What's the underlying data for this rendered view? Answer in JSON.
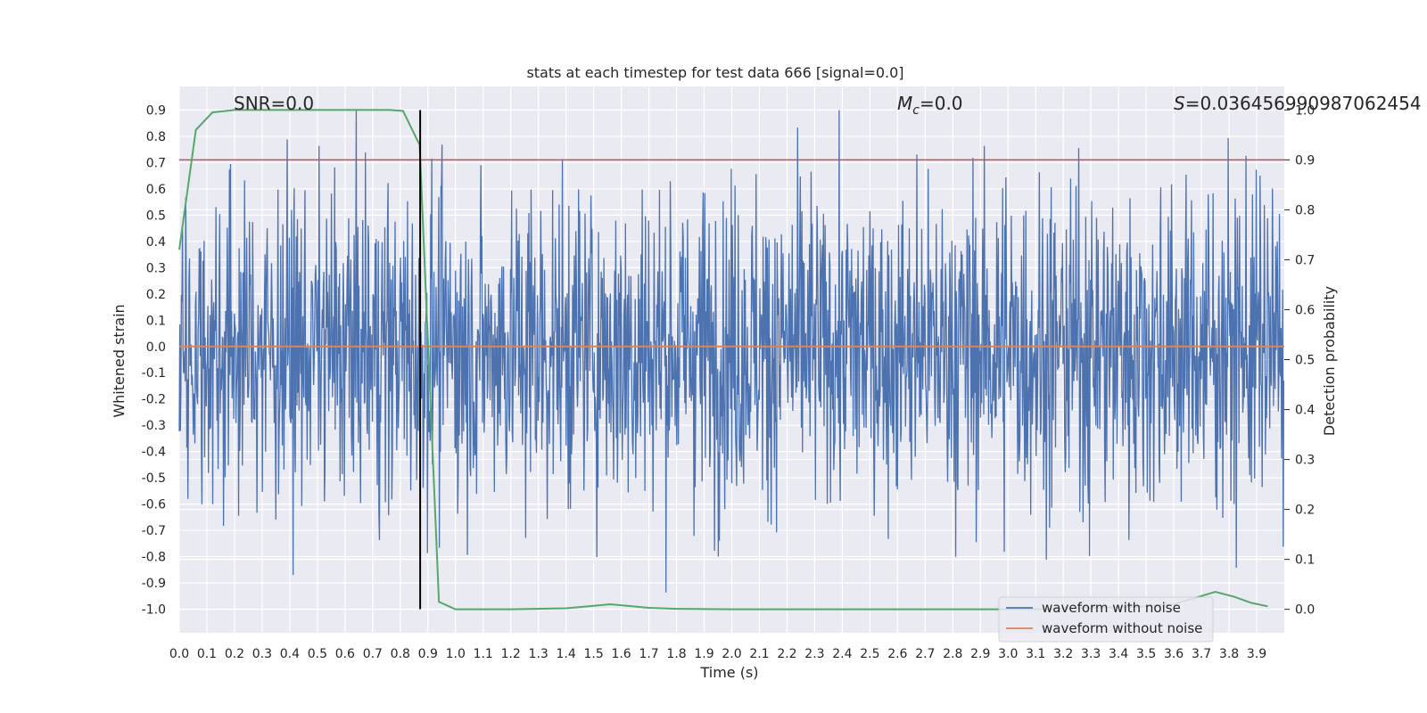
{
  "chart_data": {
    "type": "line",
    "title": "stats at each timestep for test data 666 [signal=0.0]",
    "xlabel": "Time (s)",
    "ylabel": "Whitened strain",
    "y2label": "Detection probability",
    "xlim": [
      0.0,
      4.0
    ],
    "ylim": [
      -1.09,
      0.99
    ],
    "y2lim": [
      -0.047,
      1.047
    ],
    "x_ticks": [
      "0.0",
      "0.1",
      "0.2",
      "0.3",
      "0.4",
      "0.5",
      "0.6",
      "0.7",
      "0.8",
      "0.9",
      "1.0",
      "1.1",
      "1.2",
      "1.3",
      "1.4",
      "1.5",
      "1.6",
      "1.7",
      "1.8",
      "1.9",
      "2.0",
      "2.1",
      "2.2",
      "2.3",
      "2.4",
      "2.5",
      "2.6",
      "2.7",
      "2.8",
      "2.9",
      "3.0",
      "3.1",
      "3.2",
      "3.3",
      "3.4",
      "3.5",
      "3.6",
      "3.7",
      "3.8",
      "3.9"
    ],
    "y_ticks": [
      "0.9",
      "0.8",
      "0.7",
      "0.6",
      "0.5",
      "0.4",
      "0.3",
      "0.2",
      "0.1",
      "0.0",
      "-0.1",
      "-0.2",
      "-0.3",
      "-0.4",
      "-0.5",
      "-0.6",
      "-0.7",
      "-0.8",
      "-0.9",
      "-1.0"
    ],
    "y2_ticks": [
      "1.0",
      "0.9",
      "0.8",
      "0.7",
      "0.6",
      "0.5",
      "0.4",
      "0.3",
      "0.2",
      "0.1",
      "0.0"
    ],
    "annotations": {
      "snr": "SNR=0.0",
      "mc_symbol": "M",
      "mc_sub": "c",
      "mc_value": "=0.0",
      "s_symbol": "S",
      "s_value": "=0.036456990987062454"
    },
    "legend": {
      "placement": "bottom-right",
      "entries": [
        {
          "name": "waveform with noise",
          "color": "#4c72b0"
        },
        {
          "name": "waveform without noise",
          "color": "#dd8452"
        }
      ]
    },
    "noise_series": {
      "name": "waveform with noise",
      "color": "#4c72b0",
      "samples": 2048,
      "typical_amplitude": 0.3,
      "range": [
        -1.0,
        0.9
      ]
    },
    "clean_series": {
      "name": "waveform without noise",
      "color": "#dd8452",
      "value": 0.0
    },
    "probability_series": {
      "name": "detection probability",
      "color": "#55a868",
      "axis": "right",
      "points": [
        [
          0.0,
          0.72
        ],
        [
          0.06,
          0.96
        ],
        [
          0.12,
          0.995
        ],
        [
          0.2,
          1.0
        ],
        [
          0.4,
          1.0
        ],
        [
          0.6,
          1.0
        ],
        [
          0.76,
          1.0
        ],
        [
          0.81,
          0.998
        ],
        [
          0.87,
          0.93
        ],
        [
          0.94,
          0.015
        ],
        [
          1.0,
          0.0
        ],
        [
          1.2,
          0.0
        ],
        [
          1.4,
          0.002
        ],
        [
          1.5,
          0.007
        ],
        [
          1.56,
          0.01
        ],
        [
          1.6,
          0.008
        ],
        [
          1.7,
          0.003
        ],
        [
          1.8,
          0.001
        ],
        [
          2.0,
          0.0
        ],
        [
          2.5,
          0.0
        ],
        [
          3.0,
          0.0
        ],
        [
          3.1,
          0.0
        ],
        [
          3.3,
          0.003
        ],
        [
          3.5,
          0.006
        ],
        [
          3.6,
          0.01
        ],
        [
          3.66,
          0.02
        ],
        [
          3.75,
          0.035
        ],
        [
          3.82,
          0.025
        ],
        [
          3.88,
          0.013
        ],
        [
          3.94,
          0.006
        ]
      ]
    },
    "threshold_line": {
      "color": "#c44e52",
      "value": 0.9,
      "axis": "right"
    },
    "marker_line": {
      "color": "#000000",
      "x": 0.872,
      "y_from": -1.0,
      "y_to": 0.9
    }
  }
}
